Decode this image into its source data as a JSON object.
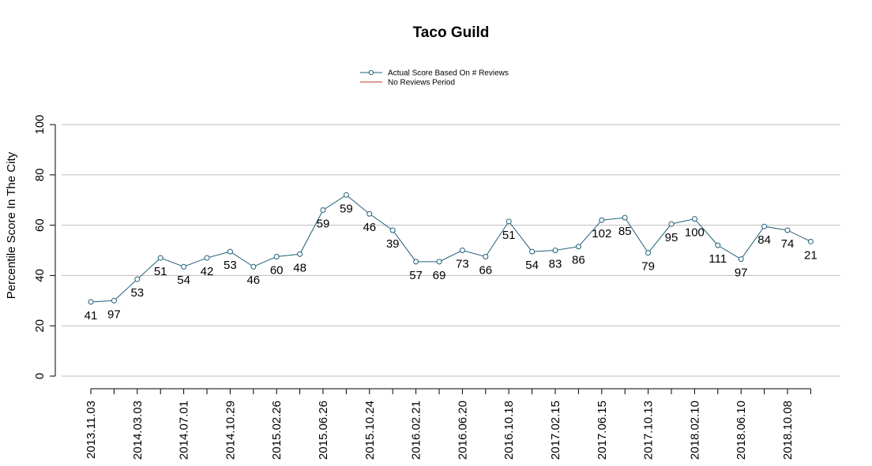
{
  "chart_data": {
    "type": "line",
    "title": "Taco Guild",
    "ylabel": "Percentile Score In The City",
    "xlabel": "",
    "ylim": [
      0,
      100
    ],
    "y_ticks": [
      0,
      20,
      40,
      60,
      80,
      100
    ],
    "grid": "horizontal",
    "legend_position": "top-center",
    "legend": [
      {
        "label": "Actual Score Based On # Reviews",
        "color": "#1f5f7a",
        "marker": "circle"
      },
      {
        "label": "No Reviews Period",
        "color": "#c0392b",
        "marker": "none"
      }
    ],
    "x_tick_labels": [
      "2013.11.03",
      "2014.03.03",
      "2014.07.01",
      "2014.10.29",
      "2015.02.26",
      "2015.06.26",
      "2015.10.24",
      "2016.02.21",
      "2016.06.20",
      "2016.10.18",
      "2017.02.15",
      "2017.06.15",
      "2017.10.13",
      "2018.02.10",
      "2018.06.10",
      "2018.10.08"
    ],
    "series": [
      {
        "name": "Actual Score Based On # Reviews",
        "color": "#1f5f7a",
        "values": [
          29.5,
          30.0,
          38.5,
          47.0,
          43.5,
          47.0,
          49.5,
          43.5,
          47.5,
          48.5,
          66.0,
          72.0,
          64.5,
          58.0,
          45.5,
          45.5,
          50.0,
          47.5,
          61.5,
          49.5,
          50.0,
          51.5,
          62.0,
          63.0,
          49.0,
          60.5,
          62.5,
          52.0,
          46.5,
          59.5,
          58.0,
          53.5
        ],
        "labels": [
          "41",
          "97",
          "53",
          "51",
          "54",
          "42",
          "53",
          "46",
          "60",
          "48",
          "59",
          "59",
          "46",
          "39",
          "57",
          "69",
          "73",
          "66",
          "51",
          "54",
          "83",
          "86",
          "102",
          "85",
          "79",
          "95",
          "100",
          "111",
          "97",
          "84",
          "74",
          "21"
        ]
      }
    ]
  }
}
